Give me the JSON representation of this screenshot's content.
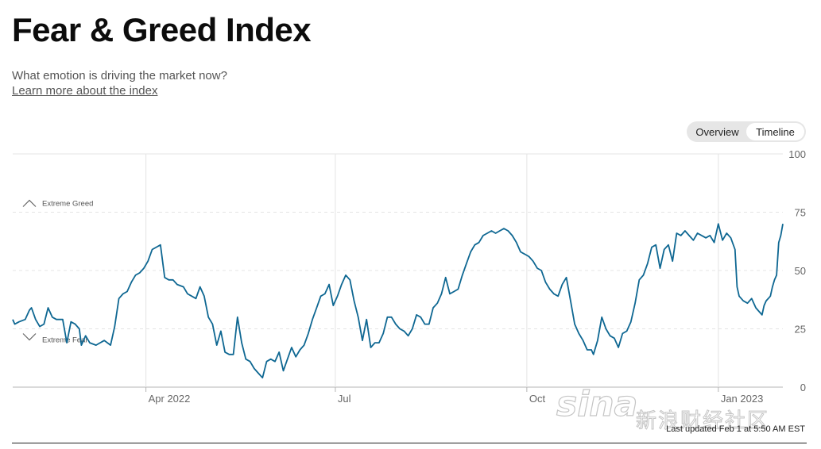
{
  "header": {
    "title": "Fear & Greed Index",
    "subtitle": "What emotion is driving the market now?",
    "learn_more": "Learn more about the index"
  },
  "toggle": {
    "overview": "Overview",
    "timeline": "Timeline",
    "active": "Timeline"
  },
  "footer": {
    "last_updated": "Last updated Feb 1 at 5:50 AM EST"
  },
  "watermark": {
    "logo": "sina",
    "text": "新浪财经社区"
  },
  "colors": {
    "line": "#0e6792",
    "grid": "#e4e4e4",
    "axis": "#888888"
  },
  "chart_data": {
    "type": "line",
    "title": "",
    "xlabel": "",
    "ylabel": "",
    "ylim": [
      0,
      100
    ],
    "yticks": [
      "0",
      "25",
      "50",
      "75",
      "100"
    ],
    "xlim": [
      "2022-01-27",
      "2023-02-01"
    ],
    "x_ticks": [
      {
        "date": "2022-04-01",
        "label": "Apr 2022"
      },
      {
        "date": "2022-07-01",
        "label": "Jul"
      },
      {
        "date": "2022-10-01",
        "label": "Oct"
      },
      {
        "date": "2023-01-01",
        "label": "Jan 2023"
      }
    ],
    "zones": [
      {
        "label": "Extreme Greed",
        "value": 75,
        "icon": "chevron-up-icon"
      },
      {
        "label": "Extreme Fear",
        "value": 25,
        "icon": "chevron-down-icon"
      }
    ],
    "series": [
      {
        "name": "",
        "points": [
          [
            "2022-01-27",
            29
          ],
          [
            "2022-01-28",
            27
          ],
          [
            "2022-01-30",
            28
          ],
          [
            "2022-02-02",
            29
          ],
          [
            "2022-02-04",
            33
          ],
          [
            "2022-02-05",
            34
          ],
          [
            "2022-02-07",
            29
          ],
          [
            "2022-02-09",
            26
          ],
          [
            "2022-02-11",
            27
          ],
          [
            "2022-02-13",
            34
          ],
          [
            "2022-02-15",
            30
          ],
          [
            "2022-02-17",
            29
          ],
          [
            "2022-02-20",
            29
          ],
          [
            "2022-02-22",
            19
          ],
          [
            "2022-02-24",
            28
          ],
          [
            "2022-02-26",
            27
          ],
          [
            "2022-02-28",
            25
          ],
          [
            "2022-03-01",
            18
          ],
          [
            "2022-03-03",
            22
          ],
          [
            "2022-03-05",
            19
          ],
          [
            "2022-03-08",
            18
          ],
          [
            "2022-03-10",
            19
          ],
          [
            "2022-03-12",
            20
          ],
          [
            "2022-03-15",
            18
          ],
          [
            "2022-03-17",
            26
          ],
          [
            "2022-03-19",
            38
          ],
          [
            "2022-03-21",
            40
          ],
          [
            "2022-03-23",
            41
          ],
          [
            "2022-03-25",
            45
          ],
          [
            "2022-03-27",
            48
          ],
          [
            "2022-03-29",
            49
          ],
          [
            "2022-03-31",
            51
          ],
          [
            "2022-04-02",
            54
          ],
          [
            "2022-04-04",
            59
          ],
          [
            "2022-04-06",
            60
          ],
          [
            "2022-04-08",
            61
          ],
          [
            "2022-04-10",
            47
          ],
          [
            "2022-04-12",
            46
          ],
          [
            "2022-04-14",
            46
          ],
          [
            "2022-04-16",
            44
          ],
          [
            "2022-04-19",
            43
          ],
          [
            "2022-04-21",
            40
          ],
          [
            "2022-04-23",
            39
          ],
          [
            "2022-04-25",
            38
          ],
          [
            "2022-04-27",
            43
          ],
          [
            "2022-04-29",
            39
          ],
          [
            "2022-05-01",
            30
          ],
          [
            "2022-05-03",
            27
          ],
          [
            "2022-05-05",
            18
          ],
          [
            "2022-05-07",
            24
          ],
          [
            "2022-05-09",
            15
          ],
          [
            "2022-05-11",
            14
          ],
          [
            "2022-05-13",
            14
          ],
          [
            "2022-05-15",
            30
          ],
          [
            "2022-05-17",
            19
          ],
          [
            "2022-05-19",
            12
          ],
          [
            "2022-05-21",
            11
          ],
          [
            "2022-05-23",
            8
          ],
          [
            "2022-05-25",
            6
          ],
          [
            "2022-05-27",
            4
          ],
          [
            "2022-05-29",
            11
          ],
          [
            "2022-05-31",
            12
          ],
          [
            "2022-06-02",
            11
          ],
          [
            "2022-06-04",
            15
          ],
          [
            "2022-06-06",
            7
          ],
          [
            "2022-06-08",
            12
          ],
          [
            "2022-06-10",
            17
          ],
          [
            "2022-06-12",
            13
          ],
          [
            "2022-06-14",
            16
          ],
          [
            "2022-06-16",
            18
          ],
          [
            "2022-06-18",
            23
          ],
          [
            "2022-06-20",
            29
          ],
          [
            "2022-06-22",
            34
          ],
          [
            "2022-06-24",
            39
          ],
          [
            "2022-06-26",
            40
          ],
          [
            "2022-06-28",
            44
          ],
          [
            "2022-06-30",
            35
          ],
          [
            "2022-07-02",
            39
          ],
          [
            "2022-07-04",
            44
          ],
          [
            "2022-07-06",
            48
          ],
          [
            "2022-07-08",
            46
          ],
          [
            "2022-07-10",
            37
          ],
          [
            "2022-07-12",
            30
          ],
          [
            "2022-07-14",
            20
          ],
          [
            "2022-07-16",
            29
          ],
          [
            "2022-07-18",
            17
          ],
          [
            "2022-07-20",
            19
          ],
          [
            "2022-07-22",
            19
          ],
          [
            "2022-07-24",
            23
          ],
          [
            "2022-07-26",
            30
          ],
          [
            "2022-07-28",
            30
          ],
          [
            "2022-07-30",
            27
          ],
          [
            "2022-08-01",
            25
          ],
          [
            "2022-08-03",
            24
          ],
          [
            "2022-08-05",
            22
          ],
          [
            "2022-08-07",
            25
          ],
          [
            "2022-08-09",
            31
          ],
          [
            "2022-08-11",
            30
          ],
          [
            "2022-08-13",
            27
          ],
          [
            "2022-08-15",
            27
          ],
          [
            "2022-08-17",
            34
          ],
          [
            "2022-08-19",
            36
          ],
          [
            "2022-08-21",
            40
          ],
          [
            "2022-08-23",
            47
          ],
          [
            "2022-08-25",
            40
          ],
          [
            "2022-08-27",
            41
          ],
          [
            "2022-08-29",
            42
          ],
          [
            "2022-08-31",
            48
          ],
          [
            "2022-09-02",
            53
          ],
          [
            "2022-09-04",
            58
          ],
          [
            "2022-09-06",
            61
          ],
          [
            "2022-09-08",
            62
          ],
          [
            "2022-09-10",
            65
          ],
          [
            "2022-09-12",
            66
          ],
          [
            "2022-09-14",
            67
          ],
          [
            "2022-09-16",
            66
          ],
          [
            "2022-09-18",
            67
          ],
          [
            "2022-09-20",
            68
          ],
          [
            "2022-09-22",
            67
          ],
          [
            "2022-09-24",
            65
          ],
          [
            "2022-09-26",
            62
          ],
          [
            "2022-09-28",
            58
          ],
          [
            "2022-09-30",
            57
          ],
          [
            "2022-10-02",
            56
          ],
          [
            "2022-10-04",
            54
          ],
          [
            "2022-10-06",
            51
          ],
          [
            "2022-10-08",
            50
          ],
          [
            "2022-10-10",
            45
          ],
          [
            "2022-10-12",
            42
          ],
          [
            "2022-10-14",
            40
          ],
          [
            "2022-10-16",
            39
          ],
          [
            "2022-10-18",
            44
          ],
          [
            "2022-10-20",
            47
          ],
          [
            "2022-10-22",
            37
          ],
          [
            "2022-10-24",
            27
          ],
          [
            "2022-10-26",
            23
          ],
          [
            "2022-10-28",
            20
          ],
          [
            "2022-10-30",
            16
          ],
          [
            "2022-11-01",
            16
          ],
          [
            "2022-11-02",
            14
          ],
          [
            "2022-11-04",
            20
          ],
          [
            "2022-11-06",
            30
          ],
          [
            "2022-11-08",
            25
          ],
          [
            "2022-11-10",
            22
          ],
          [
            "2022-11-12",
            21
          ],
          [
            "2022-11-14",
            17
          ],
          [
            "2022-11-16",
            23
          ],
          [
            "2022-11-18",
            24
          ],
          [
            "2022-11-20",
            28
          ],
          [
            "2022-11-22",
            36
          ],
          [
            "2022-11-24",
            46
          ],
          [
            "2022-11-26",
            48
          ],
          [
            "2022-11-28",
            53
          ],
          [
            "2022-11-30",
            60
          ],
          [
            "2022-12-02",
            61
          ],
          [
            "2022-12-04",
            51
          ],
          [
            "2022-12-06",
            59
          ],
          [
            "2022-12-08",
            61
          ],
          [
            "2022-12-10",
            54
          ],
          [
            "2022-12-12",
            66
          ],
          [
            "2022-12-14",
            65
          ],
          [
            "2022-12-16",
            67
          ],
          [
            "2022-12-18",
            65
          ],
          [
            "2022-12-20",
            63
          ],
          [
            "2022-12-22",
            66
          ],
          [
            "2022-12-24",
            65
          ],
          [
            "2022-12-26",
            64
          ],
          [
            "2022-12-28",
            65
          ],
          [
            "2022-12-30",
            62
          ],
          [
            "2023-01-01",
            70
          ],
          [
            "2023-01-03",
            63
          ],
          [
            "2023-01-05",
            66
          ],
          [
            "2023-01-07",
            64
          ],
          [
            "2023-01-09",
            59
          ],
          [
            "2023-01-10",
            43
          ],
          [
            "2023-01-11",
            39
          ],
          [
            "2023-01-13",
            37
          ],
          [
            "2023-01-15",
            36
          ],
          [
            "2023-01-17",
            38
          ],
          [
            "2023-01-19",
            34
          ],
          [
            "2023-01-20",
            33
          ],
          [
            "2023-01-22",
            31
          ],
          [
            "2023-01-23",
            35
          ],
          [
            "2023-01-24",
            37
          ],
          [
            "2023-01-25",
            38
          ],
          [
            "2023-01-26",
            39
          ],
          [
            "2023-01-27",
            43
          ],
          [
            "2023-01-28",
            46
          ],
          [
            "2023-01-29",
            48
          ],
          [
            "2023-01-30",
            62
          ],
          [
            "2023-01-31",
            65
          ],
          [
            "2023-02-01",
            70
          ]
        ]
      }
    ]
  }
}
